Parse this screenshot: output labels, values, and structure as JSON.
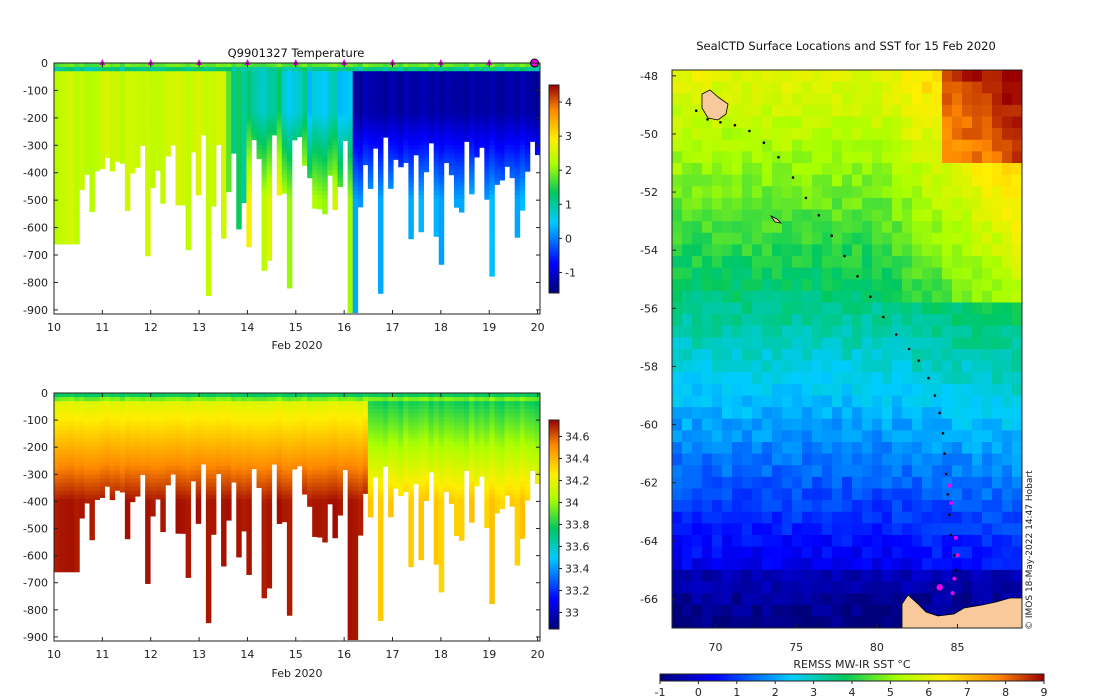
{
  "chart_data": [
    {
      "type": "heatmap",
      "title": "Q9901327  Temperature",
      "xlabel": "Feb 2020",
      "x_ticks": [
        "10",
        "11",
        "12",
        "13",
        "14",
        "15",
        "16",
        "17",
        "18",
        "19",
        "20"
      ],
      "xlim": [
        10,
        20.05
      ],
      "y_ticks": [
        "0",
        "-100",
        "-200",
        "-300",
        "-400",
        "-500",
        "-600",
        "-700",
        "-800",
        "-900"
      ],
      "ylim": [
        -915,
        0
      ],
      "colorbar": {
        "ticks": [
          "4",
          "3",
          "2",
          "1",
          "0",
          "-1"
        ],
        "min": -1.6,
        "max": 4.5
      },
      "profile_markers_days": [
        11,
        12,
        13,
        14,
        15,
        16,
        17,
        18,
        19
      ],
      "last_marker_day": 20,
      "trend": "warm (~2.5 degC) near 10-13 Feb, cooling to about -1.5 degC after 16 Feb; surface layer 0 to 2 degC"
    },
    {
      "type": "heatmap",
      "title": "",
      "xlabel": "Feb 2020",
      "x_ticks": [
        "10",
        "11",
        "12",
        "13",
        "14",
        "15",
        "16",
        "17",
        "18",
        "19",
        "20"
      ],
      "xlim": [
        10,
        20.05
      ],
      "y_ticks": [
        "0",
        "-100",
        "-200",
        "-300",
        "-400",
        "-500",
        "-600",
        "-700",
        "-800",
        "-900"
      ],
      "ylim": [
        -915,
        0
      ],
      "colorbar": {
        "ticks": [
          "34.6",
          "34.4",
          "34.2",
          "34",
          "33.8",
          "33.6",
          "33.4",
          "33.2",
          "33"
        ],
        "min": 32.85,
        "max": 34.75
      },
      "trend": "salinity ~33.9 at surface rising to ~34.7 at depth; lower (~34.3) at depth after 16 Feb"
    },
    {
      "type": "heatmap",
      "title": "SealCTD Surface Locations and SST for 15 Feb 2020",
      "x_ticks": [
        "70",
        "75",
        "80",
        "85"
      ],
      "xlim": [
        67.3,
        89
      ],
      "y_ticks": [
        "-48",
        "-50",
        "-52",
        "-54",
        "-56",
        "-58",
        "-60",
        "-62",
        "-64",
        "-66"
      ],
      "ylim": [
        -67,
        -47.8
      ],
      "colorbar": {
        "label": "REMSS MW-IR SST °C",
        "ticks": [
          "-1",
          "0",
          "1",
          "2",
          "3",
          "4",
          "5",
          "6",
          "7",
          "8",
          "9"
        ],
        "min": -1,
        "max": 9
      },
      "credit": "© IMOS 18-May-2022 14:47 Hobart",
      "track_lon": [
        68.8,
        69.5,
        70.3,
        71.2,
        72.1,
        73.0,
        73.9,
        74.8,
        75.6,
        76.4,
        77.2,
        78.0,
        78.8,
        79.6,
        80.4,
        81.2,
        82.0,
        82.6,
        83.2,
        83.6,
        83.9,
        84.1,
        84.2,
        84.3,
        84.4,
        84.5,
        84.6,
        84.8,
        84.9
      ],
      "track_lat": [
        -49.2,
        -49.5,
        -49.6,
        -49.7,
        -49.9,
        -50.3,
        -50.8,
        -51.5,
        -52.2,
        -52.8,
        -53.5,
        -54.2,
        -54.9,
        -55.6,
        -56.3,
        -56.9,
        -57.4,
        -57.8,
        -58.4,
        -59.0,
        -59.6,
        -60.3,
        -61.0,
        -61.7,
        -62.4,
        -63.1,
        -63.8,
        -64.5,
        -65.0
      ],
      "pink_lon": [
        84.5,
        84.6,
        84.9,
        85.0,
        84.8,
        84.7
      ],
      "pink_lat": [
        -62.1,
        -62.7,
        -63.9,
        -64.5,
        -65.3,
        -65.8
      ],
      "last_position": {
        "lon": 83.9,
        "lat": -65.6
      },
      "trend": "cold water (~-1 degC) along the Antarctic coast in the south, warming northward to 6-9 degC near -48; land shown at the bottom right and Kerguelen at the top left"
    }
  ]
}
